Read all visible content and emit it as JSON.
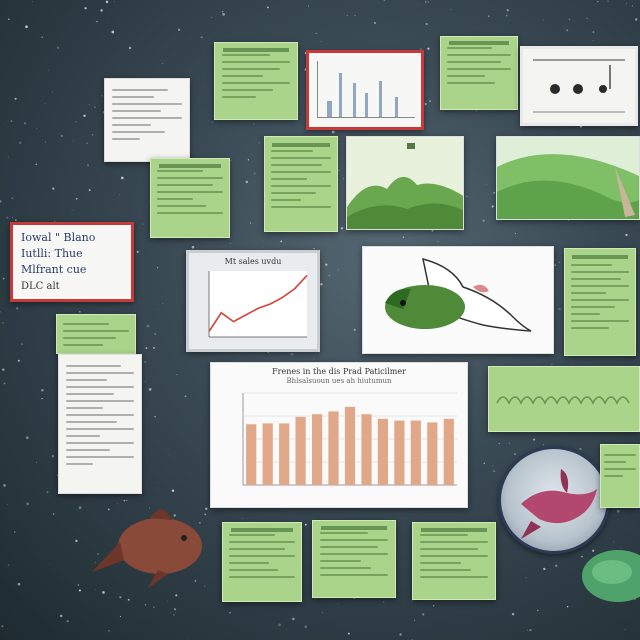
{
  "board": {
    "colors": {
      "background": "#2a3840",
      "note": "#a9d48a",
      "frame_red": "#c8393b",
      "bar": "#e0a889",
      "line": "#d2443a"
    }
  },
  "cards": {
    "red_card": {
      "rows": [
        "Iowal \" Blano",
        "Iutlli: Thue",
        "Mlfrant cue"
      ],
      "footer": "DLC alt"
    }
  },
  "line_chart": {
    "title": "Mt sales uvdu"
  },
  "bar_chart": {
    "title": "Frenes in the dis Prad Paticilmer",
    "subtitle": "Bhlsalsuoun ues ah hiutumun"
  },
  "chart_data": [
    {
      "type": "bar",
      "title": "Frenes in the dis Prad Paticilmer",
      "subtitle": "Bhlsalsuoun ues ah hiutumun",
      "values": [
        66,
        67,
        67,
        74,
        77,
        80,
        85,
        77,
        72,
        70,
        70,
        68,
        72
      ]
    },
    {
      "type": "line",
      "title": "Mt sales uvdu",
      "values": [
        5,
        22,
        14,
        20,
        26,
        30,
        36,
        44,
        56
      ]
    }
  ]
}
